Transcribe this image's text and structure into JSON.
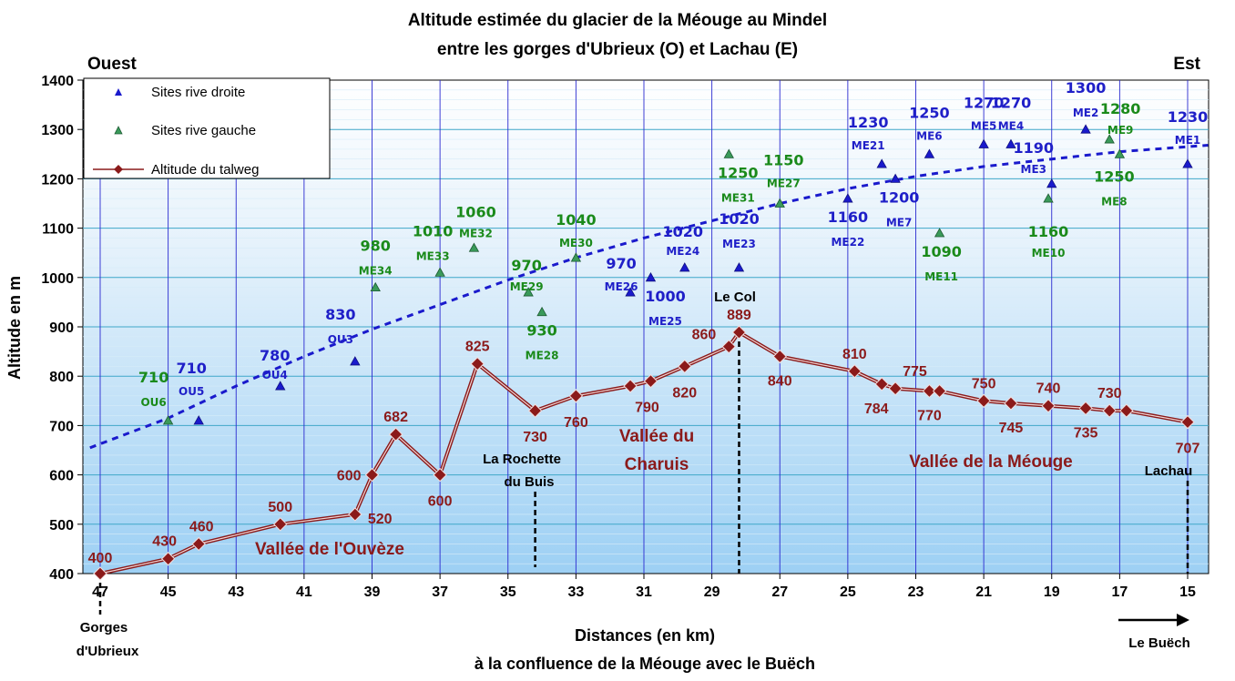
{
  "chart_data": {
    "type": "line",
    "title": "Altitude estimée du glacier de la Méouge au Mindel",
    "subtitle": "entre les gorges d'Ubrieux (O) et Lachau (E)",
    "corner_left": "Ouest",
    "corner_right": "Est",
    "xlabel": "Distances (en km)",
    "xlabel2": "à la confluence de la Méouge avec le Buëch",
    "ylabel": "Altitude en m",
    "xlim": [
      47,
      14.4
    ],
    "ylim": [
      400,
      1400
    ],
    "x_ticks": [
      47,
      45,
      43,
      41,
      39,
      37,
      35,
      33,
      31,
      29,
      27,
      25,
      23,
      21,
      19,
      17,
      15
    ],
    "y_ticks": [
      400,
      500,
      600,
      700,
      800,
      900,
      1000,
      1100,
      1200,
      1300,
      1400
    ],
    "grid": true,
    "legend_position": "top-left",
    "legend": [
      "Sites rive droite",
      "Sites rive gauche",
      "Altitude du talweg"
    ],
    "colors": {
      "rive_droite": "#1a1acc",
      "rive_gauche": "#3a9a5a",
      "talweg": "#8b1a1a",
      "trend": "#1a1acc",
      "text_blue": "#1f1fc8",
      "text_green": "#1a8a1a",
      "text_red": "#8b1a1a"
    },
    "series": [
      {
        "name": "Altitude du talweg",
        "points": [
          {
            "x": 47,
            "y": 400,
            "label": "400"
          },
          {
            "x": 45,
            "y": 430,
            "label": "430"
          },
          {
            "x": 44.1,
            "y": 460,
            "label": "460"
          },
          {
            "x": 41.7,
            "y": 500,
            "label": "500"
          },
          {
            "x": 39.5,
            "y": 520,
            "label": "520"
          },
          {
            "x": 39.0,
            "y": 600,
            "label": "600"
          },
          {
            "x": 38.3,
            "y": 682,
            "label": "682"
          },
          {
            "x": 37.0,
            "y": 600,
            "label": "600"
          },
          {
            "x": 35.9,
            "y": 825,
            "label": "825"
          },
          {
            "x": 34.2,
            "y": 730,
            "label": "730"
          },
          {
            "x": 33.0,
            "y": 760,
            "label": "760"
          },
          {
            "x": 31.4,
            "y": 780,
            "label": ""
          },
          {
            "x": 30.8,
            "y": 790,
            "label": "790"
          },
          {
            "x": 29.8,
            "y": 820,
            "label": "820"
          },
          {
            "x": 28.5,
            "y": 860,
            "label": "860"
          },
          {
            "x": 28.2,
            "y": 889,
            "label": "889"
          },
          {
            "x": 27.0,
            "y": 840,
            "label": "840"
          },
          {
            "x": 24.8,
            "y": 810,
            "label": "810"
          },
          {
            "x": 24.0,
            "y": 784,
            "label": "784"
          },
          {
            "x": 23.6,
            "y": 775,
            "label": "775"
          },
          {
            "x": 22.6,
            "y": 770,
            "label": "770"
          },
          {
            "x": 22.3,
            "y": 770,
            "label": ""
          },
          {
            "x": 21.0,
            "y": 750,
            "label": "750"
          },
          {
            "x": 20.2,
            "y": 745,
            "label": "745"
          },
          {
            "x": 19.1,
            "y": 740,
            "label": "740"
          },
          {
            "x": 18.0,
            "y": 735,
            "label": "735"
          },
          {
            "x": 17.3,
            "y": 730,
            "label": "730"
          },
          {
            "x": 16.8,
            "y": 730,
            "label": ""
          },
          {
            "x": 15.0,
            "y": 707,
            "label": "707"
          }
        ]
      },
      {
        "name": "Sites rive droite",
        "points": [
          {
            "x": 44.1,
            "y": 710,
            "value": "710",
            "id": "OU5"
          },
          {
            "x": 41.7,
            "y": 780,
            "value": "780",
            "id": "OU4"
          },
          {
            "x": 39.5,
            "y": 830,
            "value": "830",
            "id": "OU3"
          },
          {
            "x": 31.4,
            "y": 970,
            "value": "970",
            "id": "ME26"
          },
          {
            "x": 30.8,
            "y": 1000,
            "value": "1000",
            "id": "ME25"
          },
          {
            "x": 29.8,
            "y": 1020,
            "value": "1020",
            "id": "ME24"
          },
          {
            "x": 28.2,
            "y": 1020,
            "value": "1020",
            "id": "ME23"
          },
          {
            "x": 25.0,
            "y": 1160,
            "value": "1160",
            "id": "ME22"
          },
          {
            "x": 24.0,
            "y": 1230,
            "value": "1230",
            "id": "ME21"
          },
          {
            "x": 23.6,
            "y": 1200,
            "value": "1200",
            "id": "ME7"
          },
          {
            "x": 22.6,
            "y": 1250,
            "value": "1250",
            "id": "ME6"
          },
          {
            "x": 21.0,
            "y": 1270,
            "value": "1270",
            "id": "ME5"
          },
          {
            "x": 20.2,
            "y": 1270,
            "value": "1270",
            "id": "ME4"
          },
          {
            "x": 19.0,
            "y": 1190,
            "value": "1190",
            "id": "ME3"
          },
          {
            "x": 18.0,
            "y": 1300,
            "value": "1300",
            "id": "ME2"
          },
          {
            "x": 15.0,
            "y": 1230,
            "value": "1230",
            "id": "ME1"
          }
        ]
      },
      {
        "name": "Sites rive gauche",
        "points": [
          {
            "x": 45.0,
            "y": 710,
            "value": "710",
            "id": "OU6"
          },
          {
            "x": 38.9,
            "y": 980,
            "value": "980",
            "id": "ME34"
          },
          {
            "x": 37.0,
            "y": 1010,
            "value": "1010",
            "id": "ME33"
          },
          {
            "x": 36.0,
            "y": 1060,
            "value": "1060",
            "id": "ME32"
          },
          {
            "x": 34.4,
            "y": 970,
            "value": "970",
            "id": "ME29"
          },
          {
            "x": 34.0,
            "y": 930,
            "value": "930",
            "id": "ME28"
          },
          {
            "x": 33.0,
            "y": 1040,
            "value": "1040",
            "id": "ME30"
          },
          {
            "x": 28.5,
            "y": 1250,
            "value": "1250",
            "id": "ME31"
          },
          {
            "x": 27.0,
            "y": 1150,
            "value": "1150",
            "id": "ME27"
          },
          {
            "x": 22.3,
            "y": 1090,
            "value": "1090",
            "id": "ME11"
          },
          {
            "x": 19.1,
            "y": 1160,
            "value": "1160",
            "id": "ME10"
          },
          {
            "x": 17.3,
            "y": 1280,
            "value": "1280",
            "id": "ME9"
          },
          {
            "x": 17.0,
            "y": 1250,
            "value": "1250",
            "id": "ME8"
          }
        ]
      }
    ],
    "annotations": {
      "regions": [
        "Vallée de l'Ouvèze",
        "Vallée du",
        "Charuis",
        "Vallée de la Méouge"
      ],
      "places": [
        "Gorges",
        "d'Ubrieux",
        "La Rochette",
        "du Buis",
        "Le Col",
        "Lachau",
        "Le Buëch"
      ]
    }
  }
}
